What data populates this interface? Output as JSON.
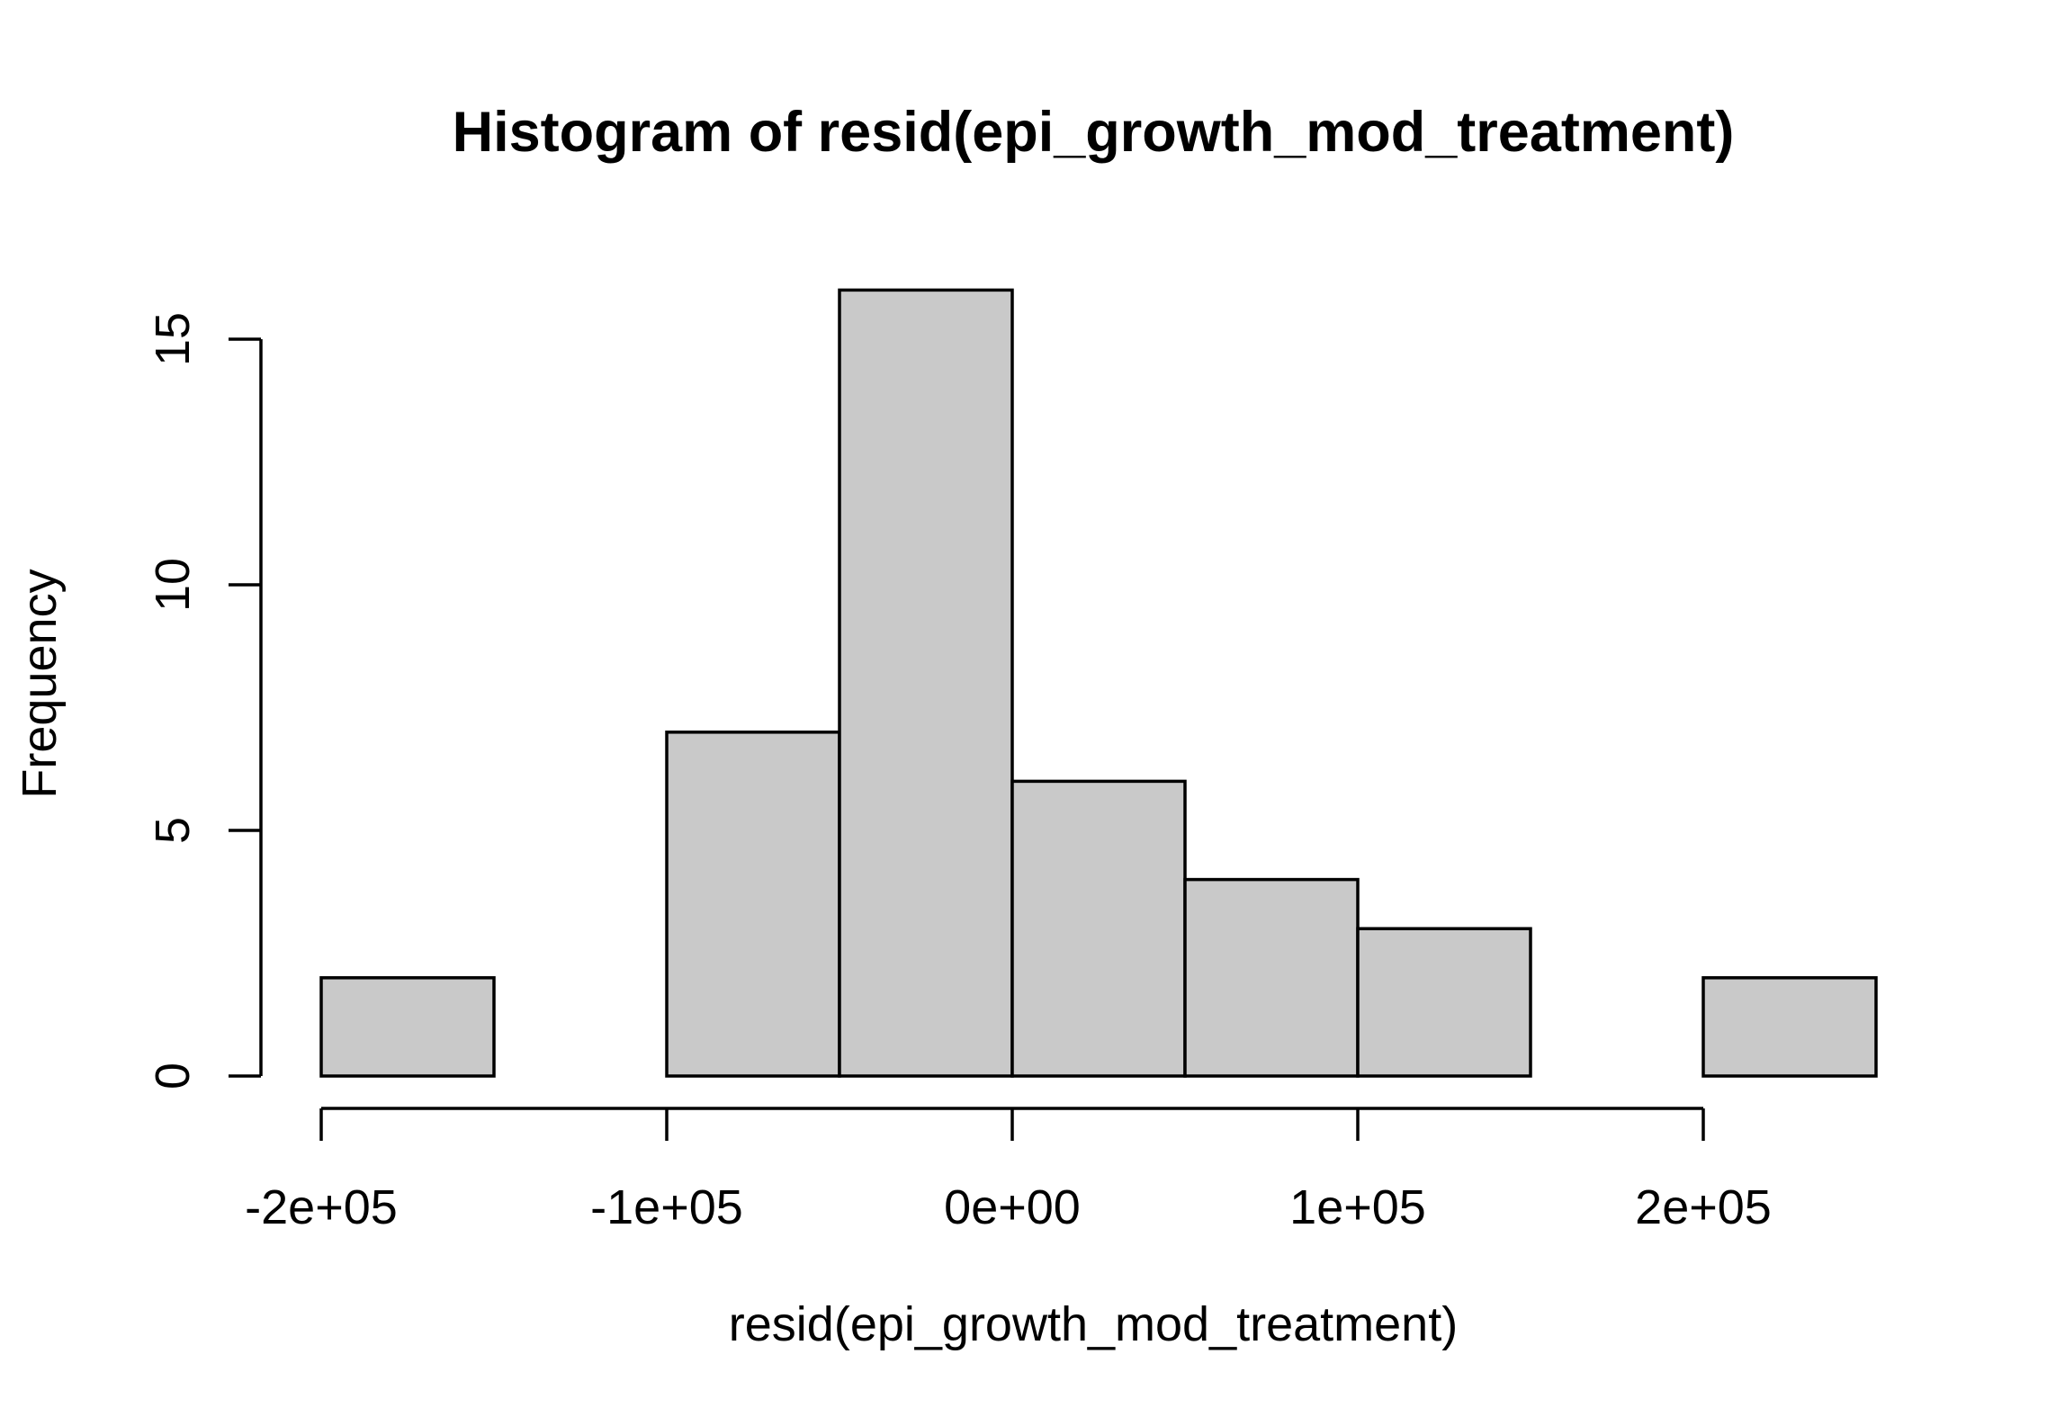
{
  "chart_data": {
    "type": "bar",
    "title": "Histogram of resid(epi_growth_mod_treatment)",
    "xlabel": "resid(epi_growth_mod_treatment)",
    "ylabel": "Frequency",
    "bins": [
      {
        "start": -200000,
        "end": -150000,
        "count": 2
      },
      {
        "start": -150000,
        "end": -100000,
        "count": 0
      },
      {
        "start": -100000,
        "end": -50000,
        "count": 7
      },
      {
        "start": -50000,
        "end": 0,
        "count": 16
      },
      {
        "start": 0,
        "end": 50000,
        "count": 6
      },
      {
        "start": 50000,
        "end": 100000,
        "count": 4
      },
      {
        "start": 100000,
        "end": 150000,
        "count": 3
      },
      {
        "start": 150000,
        "end": 200000,
        "count": 0
      },
      {
        "start": 200000,
        "end": 250000,
        "count": 2
      }
    ],
    "x_ticks": [
      {
        "value": -200000,
        "label": "-2e+05"
      },
      {
        "value": -100000,
        "label": "-1e+05"
      },
      {
        "value": 0,
        "label": "0e+00"
      },
      {
        "value": 100000,
        "label": "1e+05"
      },
      {
        "value": 200000,
        "label": "2e+05"
      }
    ],
    "y_ticks": [
      {
        "value": 0,
        "label": "0"
      },
      {
        "value": 5,
        "label": "5"
      },
      {
        "value": 10,
        "label": "10"
      },
      {
        "value": 15,
        "label": "15"
      }
    ],
    "xlim": [
      -200000,
      250000
    ],
    "ylim": [
      0,
      16
    ],
    "grid": false,
    "legend": "none",
    "colors": {
      "bar_fill": "#c9c9c9",
      "bar_stroke": "#000000",
      "axis": "#000000",
      "text": "#000000",
      "background": "#ffffff"
    }
  }
}
